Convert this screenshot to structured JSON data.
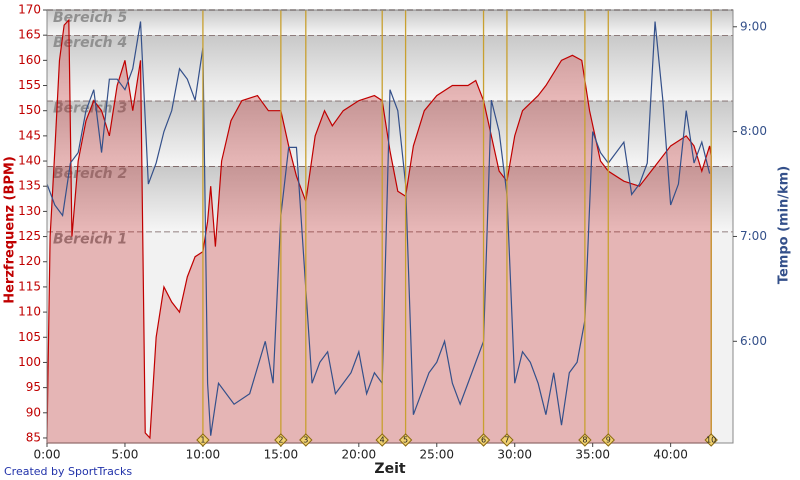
{
  "chart_data": {
    "type": "area-line",
    "x_label": "Zeit",
    "y_label": "Herzfrequenz (BPM)",
    "y2_label": "Tempo (min/km)",
    "footer": "Created by SportTracks",
    "xlim": [
      0,
      44
    ],
    "xticks": [
      {
        "value": 0,
        "label": "0:00"
      },
      {
        "value": 5,
        "label": "5:00"
      },
      {
        "value": 10,
        "label": "10:00"
      },
      {
        "value": 15,
        "label": "15:00"
      },
      {
        "value": 20,
        "label": "20:00"
      },
      {
        "value": 25,
        "label": "25:00"
      },
      {
        "value": 30,
        "label": "30:00"
      },
      {
        "value": 35,
        "label": "35:00"
      },
      {
        "value": 40,
        "label": "40:00"
      }
    ],
    "ylim": [
      84,
      170
    ],
    "yticks": [
      85,
      90,
      95,
      100,
      105,
      110,
      115,
      120,
      125,
      130,
      135,
      140,
      145,
      150,
      155,
      160,
      165,
      170
    ],
    "y2lim": [
      5.03,
      9.16
    ],
    "y2ticks": [
      {
        "value": 6,
        "label": "6:00"
      },
      {
        "value": 7,
        "label": "7:00"
      },
      {
        "value": 8,
        "label": "8:00"
      },
      {
        "value": 9,
        "label": "9:00"
      }
    ],
    "zones": [
      {
        "value": 126,
        "label": "Bereich 1"
      },
      {
        "value": 139,
        "label": "Bereich 2"
      },
      {
        "value": 152,
        "label": "Bereich 3"
      },
      {
        "value": 165,
        "label": "Bereich 4"
      },
      {
        "value": 170,
        "label": "Bereich 5"
      }
    ],
    "laps": [
      {
        "value": 10.0,
        "label": "1"
      },
      {
        "value": 15.0,
        "label": "2"
      },
      {
        "value": 16.6,
        "label": "3"
      },
      {
        "value": 21.5,
        "label": "4"
      },
      {
        "value": 23.0,
        "label": "5"
      },
      {
        "value": 28.0,
        "label": "6"
      },
      {
        "value": 29.5,
        "label": "7"
      },
      {
        "value": 34.5,
        "label": "8"
      },
      {
        "value": 36.0,
        "label": "9"
      },
      {
        "value": 42.6,
        "label": "10"
      }
    ],
    "series": [
      {
        "color": "#c00000",
        "x": [
          0,
          0.2,
          0.5,
          0.8,
          1.1,
          1.4,
          1.6,
          2.0,
          2.5,
          3.0,
          3.5,
          4.0,
          4.5,
          5.0,
          5.5,
          6.0,
          6.3,
          6.6,
          7.0,
          7.5,
          8.0,
          8.5,
          9.0,
          9.5,
          10.0,
          10.3,
          10.5,
          10.8,
          11.2,
          11.8,
          12.5,
          13.5,
          14.2,
          15.0,
          15.5,
          16.0,
          16.6,
          17.2,
          17.8,
          18.3,
          19.0,
          20.0,
          21.0,
          21.5,
          22.0,
          22.5,
          23.0,
          23.5,
          24.2,
          25.0,
          26.0,
          27.0,
          27.5,
          28.0,
          28.5,
          29.0,
          29.5,
          30.0,
          30.5,
          31.5,
          32.0,
          33.0,
          33.7,
          34.3,
          34.8,
          35.5,
          36.0,
          37.0,
          38.0,
          39.0,
          40.0,
          41.0,
          41.5,
          42.0,
          42.5,
          42.6
        ],
        "values": [
          85,
          125,
          142,
          160,
          167,
          168,
          125,
          140,
          148,
          152,
          150,
          145,
          155,
          160,
          150,
          160,
          86,
          85,
          105,
          115,
          112,
          110,
          117,
          121,
          122,
          128,
          135,
          123,
          140,
          148,
          152,
          153,
          150,
          150,
          143,
          137,
          132,
          145,
          150,
          147,
          150,
          152,
          153,
          152,
          142,
          134,
          133,
          143,
          150,
          153,
          155,
          155,
          156,
          152,
          145,
          138,
          136,
          145,
          150,
          153,
          155,
          160,
          161,
          160,
          150,
          140,
          138,
          136,
          135,
          139,
          143,
          145,
          143,
          138,
          143,
          141
        ]
      },
      {
        "color": "#34508a",
        "axis": "y2",
        "x": [
          0,
          0.5,
          1.0,
          1.5,
          2.0,
          2.5,
          3.0,
          3.5,
          4.0,
          4.5,
          5.0,
          5.5,
          6.0,
          6.5,
          7.0,
          7.5,
          8.0,
          8.5,
          9.0,
          9.5,
          10.0,
          10.3,
          10.5,
          11.0,
          12.0,
          13.0,
          14.0,
          14.5,
          15.0,
          15.5,
          16.0,
          16.6,
          17.0,
          17.5,
          18.0,
          18.5,
          19.0,
          19.5,
          20.0,
          20.5,
          21.0,
          21.5,
          22.0,
          22.5,
          23.0,
          23.5,
          24.0,
          24.5,
          25.0,
          25.5,
          26.0,
          26.5,
          27.0,
          27.5,
          28.0,
          28.5,
          29.0,
          29.5,
          30.0,
          30.5,
          31.0,
          31.5,
          32.0,
          32.5,
          33.0,
          33.5,
          34.0,
          34.5,
          35.0,
          35.5,
          36.0,
          37.0,
          37.5,
          38.0,
          38.5,
          39.0,
          39.5,
          40.0,
          40.5,
          41.0,
          41.5,
          42.0,
          42.5
        ],
        "values": [
          7.5,
          7.3,
          7.2,
          7.7,
          7.8,
          8.2,
          8.4,
          7.8,
          8.5,
          8.5,
          8.4,
          8.6,
          9.05,
          7.5,
          7.7,
          8.0,
          8.2,
          8.6,
          8.5,
          8.3,
          8.8,
          5.6,
          5.1,
          5.6,
          5.4,
          5.5,
          6.0,
          5.6,
          7.2,
          7.85,
          7.85,
          6.5,
          5.6,
          5.8,
          5.9,
          5.5,
          5.6,
          5.7,
          5.9,
          5.5,
          5.7,
          5.6,
          8.4,
          8.2,
          7.5,
          5.3,
          5.5,
          5.7,
          5.8,
          6.0,
          5.6,
          5.4,
          5.6,
          5.8,
          6.0,
          8.3,
          8.0,
          7.4,
          5.6,
          5.9,
          5.8,
          5.6,
          5.3,
          5.7,
          5.2,
          5.7,
          5.8,
          6.2,
          8.0,
          7.8,
          7.7,
          7.9,
          7.4,
          7.5,
          7.7,
          9.05,
          8.3,
          7.3,
          7.5,
          8.2,
          7.7,
          7.9,
          7.6
        ]
      }
    ]
  }
}
